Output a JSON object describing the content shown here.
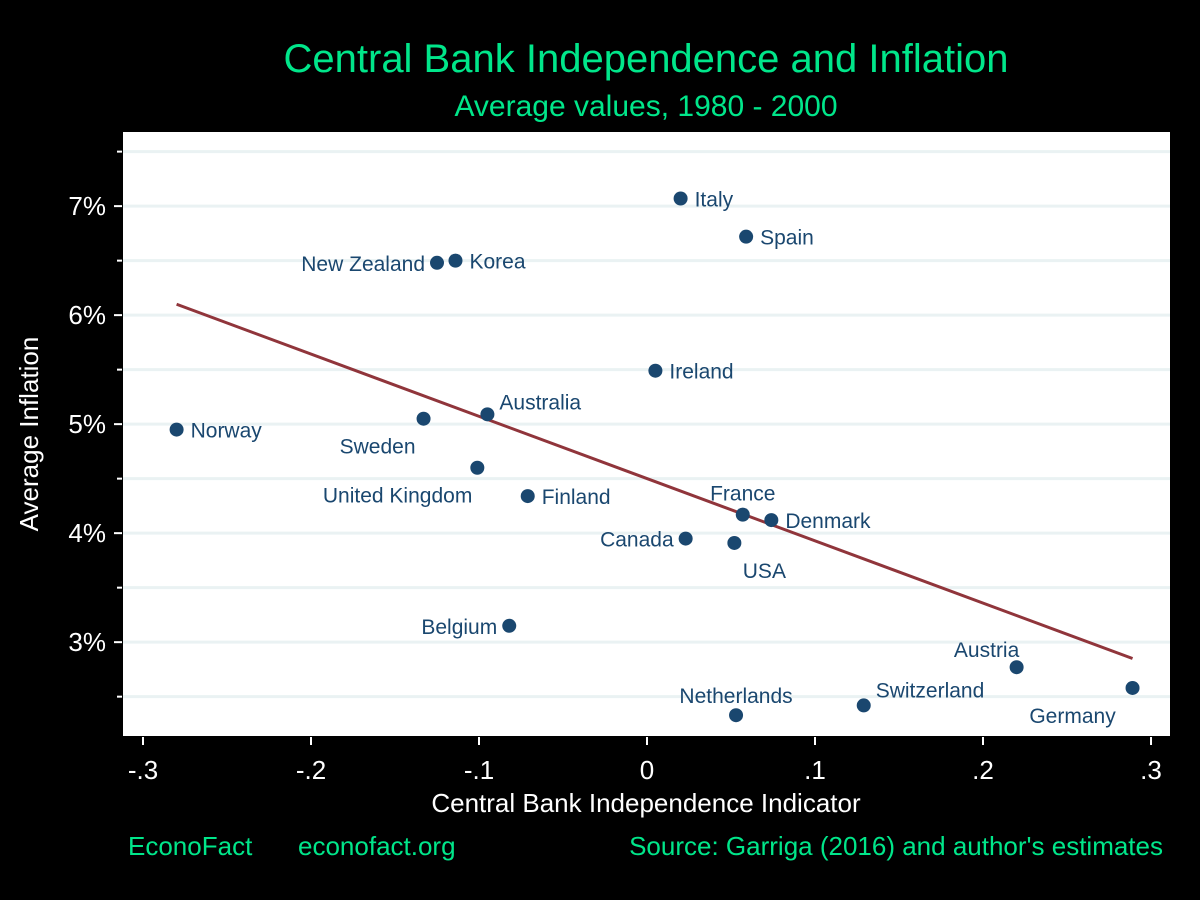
{
  "chart_data": {
    "type": "scatter",
    "title": "Central Bank Independence and Inflation",
    "subtitle": "Average values, 1980 - 2000",
    "xlabel": "Central Bank Independence Indicator",
    "ylabel": "Average Inflation",
    "xlim": [
      -0.3125,
      0.3113
    ],
    "ylim": [
      2.13,
      7.68
    ],
    "x_ticks": [
      {
        "v": -0.3,
        "label": "-.3"
      },
      {
        "v": -0.2,
        "label": "-.2"
      },
      {
        "v": -0.1,
        "label": "-.1"
      },
      {
        "v": 0,
        "label": "0"
      },
      {
        "v": 0.1,
        "label": ".1"
      },
      {
        "v": 0.2,
        "label": ".2"
      },
      {
        "v": 0.3,
        "label": ".3"
      }
    ],
    "y_ticks": [
      {
        "v": 3,
        "label": "3%"
      },
      {
        "v": 4,
        "label": "4%"
      },
      {
        "v": 5,
        "label": "5%"
      },
      {
        "v": 6,
        "label": "6%"
      },
      {
        "v": 7,
        "label": "7%"
      }
    ],
    "grid": "horizontal every 0.5%",
    "points": [
      {
        "label": "Italy",
        "x": 0.02,
        "y": 7.07
      },
      {
        "label": "Spain",
        "x": 0.059,
        "y": 6.72
      },
      {
        "label": "New Zealand",
        "x": -0.125,
        "y": 6.48
      },
      {
        "label": "Korea",
        "x": -0.114,
        "y": 6.5
      },
      {
        "label": "Ireland",
        "x": 0.005,
        "y": 5.49
      },
      {
        "label": "Norway",
        "x": -0.28,
        "y": 4.95
      },
      {
        "label": "Sweden",
        "x": -0.133,
        "y": 5.05
      },
      {
        "label": "Australia",
        "x": -0.095,
        "y": 5.09
      },
      {
        "label": "United Kingdom",
        "x": -0.101,
        "y": 4.6
      },
      {
        "label": "Finland",
        "x": -0.071,
        "y": 4.34
      },
      {
        "label": "France",
        "x": 0.057,
        "y": 4.17
      },
      {
        "label": "Denmark",
        "x": 0.074,
        "y": 4.12
      },
      {
        "label": "Canada",
        "x": 0.023,
        "y": 3.95
      },
      {
        "label": "USA",
        "x": 0.052,
        "y": 3.91
      },
      {
        "label": "Belgium",
        "x": -0.082,
        "y": 3.15
      },
      {
        "label": "Austria",
        "x": 0.22,
        "y": 2.77
      },
      {
        "label": "Switzerland",
        "x": 0.129,
        "y": 2.42
      },
      {
        "label": "Netherlands",
        "x": 0.053,
        "y": 2.33
      },
      {
        "label": "Germany",
        "x": 0.289,
        "y": 2.58
      }
    ],
    "fit_line": {
      "x": [
        -0.28,
        0.289
      ],
      "y": [
        6.1,
        2.85
      ]
    },
    "colors": {
      "background": "#000000",
      "plot_bg": "#ffffff",
      "grid": "#eaf2f3",
      "points": "#1a476f",
      "fit_line": "#90353b",
      "title": "#00e68a",
      "axis_text": "#ffffff"
    }
  },
  "footer": {
    "brand": "EconoFact",
    "site": "econofact.org",
    "source": "Source: Garriga (2016) and author's estimates"
  }
}
